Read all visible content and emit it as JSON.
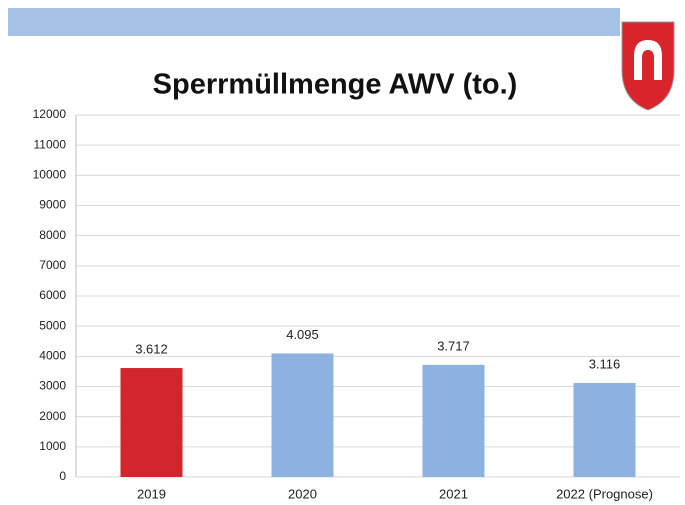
{
  "chart_data": {
    "type": "bar",
    "title": "Sperrmüllmenge AWV (to.)",
    "categories": [
      "2019",
      "2020",
      "2021",
      "2022 (Prognose)"
    ],
    "values": [
      3612,
      4095,
      3717,
      3116
    ],
    "value_labels": [
      "3.612",
      "4.095",
      "3.717",
      "3.116"
    ],
    "colors": [
      "#d1262c",
      "#8db2e2",
      "#8db2e2",
      "#8db2e2"
    ],
    "ylim": [
      0,
      12000
    ],
    "yticks": [
      0,
      1000,
      2000,
      3000,
      4000,
      5000,
      6000,
      7000,
      8000,
      9000,
      10000,
      11000,
      12000
    ],
    "grid": true
  }
}
